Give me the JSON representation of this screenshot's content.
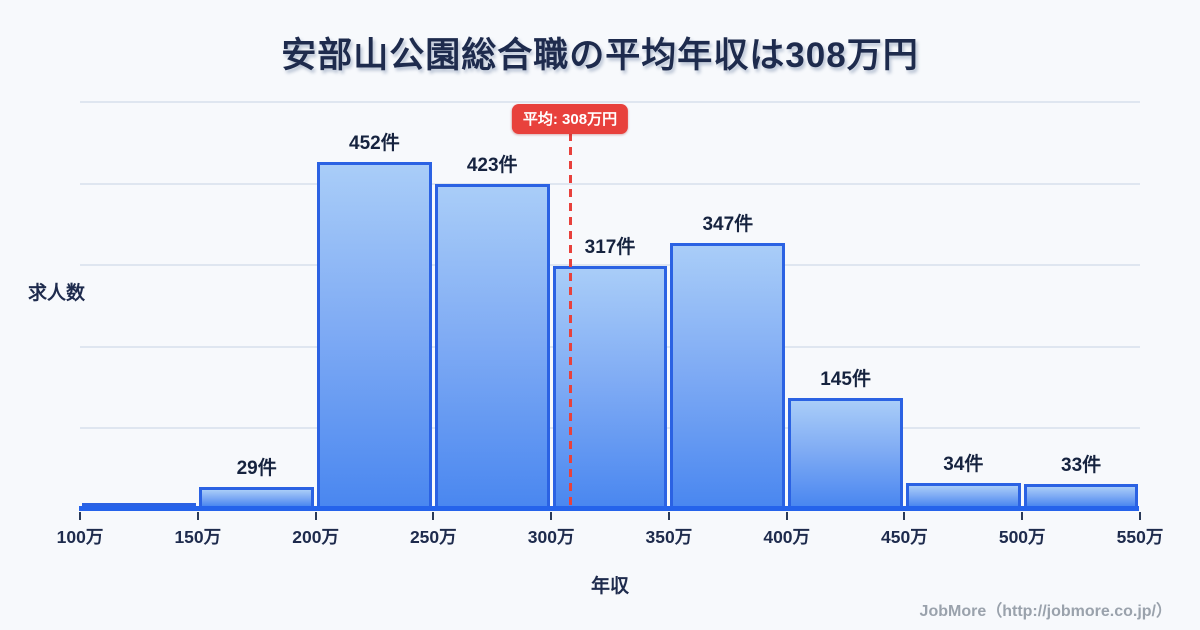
{
  "title": "安部山公園総合職の平均年収は308万円",
  "axis": {
    "y_label": "求人数",
    "x_label": "年収"
  },
  "average_marker": {
    "label": "平均: 308万円",
    "value_man_yen": 308
  },
  "footer": {
    "credit": "JobMore（http://jobmore.co.jp/）"
  },
  "colors": {
    "background": "#f7f9fc",
    "title_text": "#1e2b4d",
    "bar_border": "#2b62e3",
    "bar_fill_top": "#a9cdf8",
    "bar_fill_bottom": "#4a87f0",
    "axis_line": "#2563eb",
    "gridline": "#dfe6f0",
    "average_red": "#e8413c",
    "footer_text": "#9aa2ac"
  },
  "chart_data": {
    "type": "bar",
    "title": "安部山公園総合職の平均年収は308万円",
    "xlabel": "年収",
    "ylabel": "求人数",
    "x_tick_labels": [
      "100万",
      "150万",
      "200万",
      "250万",
      "300万",
      "350万",
      "400万",
      "450万",
      "500万",
      "550万"
    ],
    "x_range_man_yen": [
      100,
      550
    ],
    "bin_width_man_yen": 50,
    "categories": [
      "100万-150万",
      "150万-200万",
      "200万-250万",
      "250万-300万",
      "300万-350万",
      "350万-400万",
      "400万-450万",
      "450万-500万",
      "500万-550万"
    ],
    "values": [
      0,
      29,
      452,
      423,
      317,
      347,
      145,
      34,
      33
    ],
    "bar_labels": [
      "",
      "29件",
      "452件",
      "423件",
      "317件",
      "347件",
      "145件",
      "34件",
      "33件"
    ],
    "average_man_yen": 308,
    "average_label": "平均: 308万円",
    "grid": true,
    "legend": false,
    "gridline_count": 5
  }
}
